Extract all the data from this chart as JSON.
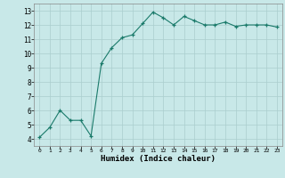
{
  "x": [
    0,
    1,
    2,
    3,
    4,
    5,
    6,
    7,
    8,
    9,
    10,
    11,
    12,
    13,
    14,
    15,
    16,
    17,
    18,
    19,
    20,
    21,
    22,
    23
  ],
  "y": [
    4.1,
    4.8,
    6.0,
    5.3,
    5.3,
    4.2,
    9.3,
    10.4,
    11.1,
    11.3,
    12.1,
    12.9,
    12.5,
    12.0,
    12.6,
    12.3,
    12.0,
    12.0,
    12.2,
    11.9,
    12.0,
    12.0,
    12.0,
    11.85
  ],
  "line_color": "#1a7a6a",
  "marker_color": "#1a7a6a",
  "bg_color": "#c8e8e8",
  "grid_color": "#aacece",
  "xlabel": "Humidex (Indice chaleur)",
  "xlim": [
    -0.5,
    23.5
  ],
  "ylim": [
    3.5,
    13.5
  ],
  "yticks": [
    4,
    5,
    6,
    7,
    8,
    9,
    10,
    11,
    12,
    13
  ],
  "xticks": [
    0,
    1,
    2,
    3,
    4,
    5,
    6,
    7,
    8,
    9,
    10,
    11,
    12,
    13,
    14,
    15,
    16,
    17,
    18,
    19,
    20,
    21,
    22,
    23
  ]
}
